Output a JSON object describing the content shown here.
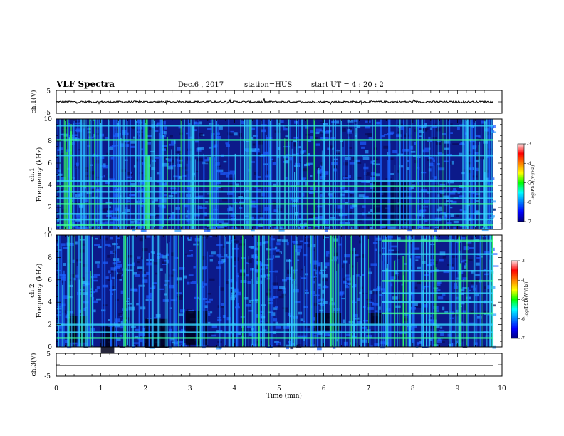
{
  "header": {
    "title": "VLF Spectra",
    "date": "Dec.6 , 2017",
    "station": "station=HUS",
    "start": "start  UT =   4 : 20 : 2"
  },
  "chart_data": [
    {
      "id": "ch1-waveform",
      "type": "line",
      "ylabel": "ch.1(V)",
      "ylim": [
        -5,
        5
      ],
      "yticks": [
        "5",
        "-5"
      ],
      "baseline": 0,
      "noise_amplitude": 0.4
    },
    {
      "id": "ch1-spectrogram",
      "type": "heatmap",
      "ylabel": "ch.1\nFrequency  (kHz)",
      "ylabel_lines": [
        "ch.1",
        "Frequency  (kHz)"
      ],
      "ylim": [
        0,
        10
      ],
      "yticks": [
        "0",
        "2",
        "4",
        "6",
        "8",
        "10"
      ],
      "xlim": [
        0,
        10
      ],
      "data_end_min": 9.8,
      "horizontal_bands_khz": [
        0.4,
        0.9,
        1.4,
        2.3,
        2.8,
        3.4,
        3.9,
        4.4,
        6.7,
        8.1,
        9.4
      ],
      "colorbar": {
        "label": "log(PSD)(V²/Hz)",
        "range": [
          -7,
          -3
        ],
        "ticks": [
          "-3",
          "-4",
          "-5",
          "-6",
          "-7"
        ]
      }
    },
    {
      "id": "ch2-spectrogram",
      "type": "heatmap",
      "ylabel": "ch.2\nFrequency  (kHz)",
      "ylabel_lines": [
        "ch.2",
        "Frequency  (kHz)"
      ],
      "ylim": [
        0,
        10
      ],
      "yticks": [
        "0",
        "2",
        "4",
        "6",
        "8",
        "10"
      ],
      "xlim": [
        0,
        10
      ],
      "data_end_min": 9.8,
      "horizontal_bands_khz": [
        0.8,
        1.3,
        2.0,
        3.0,
        4.0,
        4.8,
        5.9,
        6.8,
        8.3,
        9.5
      ],
      "colorbar": {
        "label": "log(PSD)(V²/Hz)",
        "range": [
          -7,
          -3
        ],
        "ticks": [
          "-3",
          "-4",
          "-5",
          "-6",
          "-7"
        ]
      }
    },
    {
      "id": "ch3-waveform",
      "type": "line",
      "ylabel": "ch.3(V)",
      "ylim": [
        -5,
        5
      ],
      "yticks": [
        "5",
        "-5"
      ],
      "baseline": 0,
      "noise_amplitude": 0
    }
  ],
  "xaxis": {
    "label": "Time  (min)",
    "ticks": [
      "0",
      "1",
      "2",
      "3",
      "4",
      "5",
      "6",
      "7",
      "8",
      "9",
      "10"
    ],
    "range": [
      0,
      10
    ]
  },
  "colors": {
    "background": "#000000",
    "trace": "#000000"
  }
}
